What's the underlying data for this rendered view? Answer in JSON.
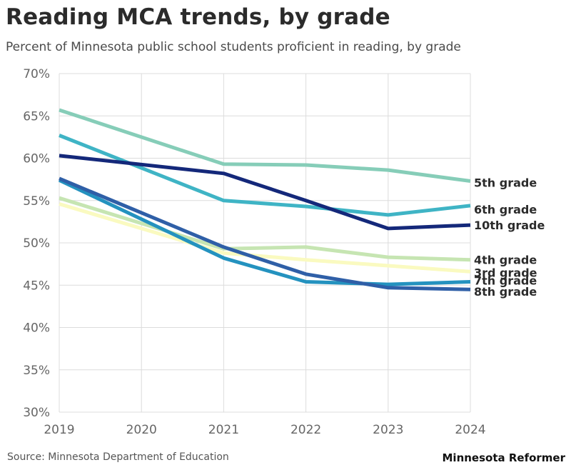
{
  "title": "Reading MCA trends, by grade",
  "subtitle": "Percent of Minnesota public school students proficient in reading, by grade",
  "source": "Source: Minnesota Department of Education",
  "brand": "Minnesota Reformer",
  "chart_data": {
    "type": "line",
    "title": "Reading MCA trends, by grade",
    "subtitle": "Percent of Minnesota public school students proficient in reading, by grade",
    "x": [
      2019,
      2020,
      2021,
      2022,
      2023,
      2024
    ],
    "x_tick_labels": [
      "2019",
      "2020",
      "2021",
      "2022",
      "2023",
      "2024"
    ],
    "ylim": [
      30,
      70
    ],
    "y_ticks": [
      30,
      35,
      40,
      45,
      50,
      55,
      60,
      65,
      70
    ],
    "y_tick_labels": [
      "30%",
      "35%",
      "40%",
      "45%",
      "50%",
      "55%",
      "60%",
      "65%",
      "70%"
    ],
    "grid": true,
    "legend": "direct labels at right end of lines",
    "series": [
      {
        "name": "3rd grade",
        "color": "#fafac0",
        "values": [
          54.6,
          null,
          48.8,
          48.0,
          47.3,
          46.6
        ]
      },
      {
        "name": "4th grade",
        "color": "#c6e5b2",
        "values": [
          55.3,
          null,
          49.3,
          49.5,
          48.3,
          48.0
        ]
      },
      {
        "name": "5th grade",
        "color": "#86cdb8",
        "values": [
          65.7,
          null,
          59.3,
          59.2,
          58.6,
          57.3
        ]
      },
      {
        "name": "6th grade",
        "color": "#3fb4c5",
        "values": [
          62.7,
          null,
          55.0,
          54.3,
          53.3,
          54.4
        ]
      },
      {
        "name": "7th grade",
        "color": "#2492bf",
        "values": [
          57.4,
          null,
          48.2,
          45.4,
          45.1,
          45.4
        ]
      },
      {
        "name": "8th grade",
        "color": "#2f5fa7",
        "values": [
          57.6,
          null,
          49.5,
          46.3,
          44.7,
          44.5
        ]
      },
      {
        "name": "10th grade",
        "color": "#14287a",
        "values": [
          60.3,
          null,
          58.2,
          55.0,
          51.7,
          52.1
        ]
      }
    ]
  }
}
